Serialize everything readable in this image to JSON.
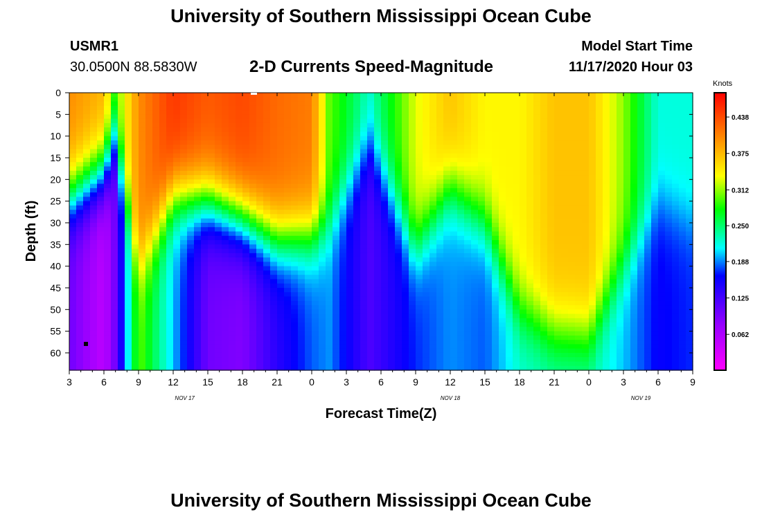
{
  "header": {
    "title": "University of Southern Mississippi Ocean Cube",
    "station_id": "USMR1",
    "coords": "30.0500N 88.5830W",
    "chart_title": "2-D Currents Speed-Magnitude",
    "start_label": "Model Start Time",
    "start_value": "11/17/2020 Hour 03"
  },
  "footer": {
    "title": "University of Southern Mississippi Ocean Cube"
  },
  "chart_data": {
    "type": "heatmap",
    "title": "2-D Currents Speed-Magnitude",
    "xlabel": "Forecast Time(Z)",
    "ylabel": "Depth (ft)",
    "x_ticks": [
      "3",
      "6",
      "9",
      "12",
      "15",
      "18",
      "21",
      "0",
      "3",
      "6",
      "9",
      "12",
      "15",
      "18",
      "21",
      "0",
      "3",
      "6",
      "9"
    ],
    "x_range_hours": [
      0,
      54
    ],
    "date_labels": [
      {
        "text": "NOV 17",
        "hour": 10
      },
      {
        "text": "NOV 18",
        "hour": 33
      },
      {
        "text": "NOV 19",
        "hour": 49.5
      }
    ],
    "y_ticks": [
      0,
      5,
      10,
      15,
      20,
      25,
      30,
      35,
      40,
      45,
      50,
      55,
      60
    ],
    "ylim": [
      0,
      64
    ],
    "colorbar": {
      "unit": "Knots",
      "range": [
        0,
        0.48
      ],
      "labels": [
        "0.062",
        "0.125",
        "0.188",
        "0.250",
        "0.312",
        "0.375",
        "0.438"
      ],
      "label_values": [
        0.062,
        0.125,
        0.188,
        0.25,
        0.312,
        0.375,
        0.438
      ]
    },
    "approx_profiles_knots": [
      {
        "hour": 0,
        "surface": 0.4,
        "bottom": 0.1,
        "transition_depth_ft": 24
      },
      {
        "hour": 3,
        "surface": 0.38,
        "bottom": 0.05,
        "transition_depth_ft": 18
      },
      {
        "hour": 4,
        "surface": 0.3,
        "bottom": 0.1,
        "transition_depth_ft": 10
      },
      {
        "hour": 6,
        "surface": 0.4,
        "bottom": 0.3,
        "transition_depth_ft": 40
      },
      {
        "hour": 9,
        "surface": 0.45,
        "bottom": 0.2,
        "transition_depth_ft": 24
      },
      {
        "hour": 12,
        "surface": 0.43,
        "bottom": 0.1,
        "transition_depth_ft": 25
      },
      {
        "hour": 15,
        "surface": 0.44,
        "bottom": 0.09,
        "transition_depth_ft": 29
      },
      {
        "hour": 18,
        "surface": 0.42,
        "bottom": 0.14,
        "transition_depth_ft": 34
      },
      {
        "hour": 21,
        "surface": 0.41,
        "bottom": 0.18,
        "transition_depth_ft": 33
      },
      {
        "hour": 22.5,
        "surface": 0.3,
        "bottom": 0.19,
        "transition_depth_ft": 30
      },
      {
        "hour": 26,
        "surface": 0.23,
        "bottom": 0.12,
        "transition_depth_ft": 12
      },
      {
        "hour": 30,
        "surface": 0.33,
        "bottom": 0.17,
        "transition_depth_ft": 36
      },
      {
        "hour": 33,
        "surface": 0.37,
        "bottom": 0.19,
        "transition_depth_ft": 22
      },
      {
        "hour": 36,
        "surface": 0.34,
        "bottom": 0.18,
        "transition_depth_ft": 30
      },
      {
        "hour": 39,
        "surface": 0.34,
        "bottom": 0.22,
        "transition_depth_ft": 50
      },
      {
        "hour": 42,
        "surface": 0.37,
        "bottom": 0.23,
        "transition_depth_ft": 55
      },
      {
        "hour": 45,
        "surface": 0.37,
        "bottom": 0.23,
        "transition_depth_ft": 56
      },
      {
        "hour": 48,
        "surface": 0.31,
        "bottom": 0.2,
        "transition_depth_ft": 40
      },
      {
        "hour": 51,
        "surface": 0.22,
        "bottom": 0.16,
        "transition_depth_ft": 25
      },
      {
        "hour": 54,
        "surface": 0.22,
        "bottom": 0.17,
        "transition_depth_ft": 30
      }
    ]
  }
}
